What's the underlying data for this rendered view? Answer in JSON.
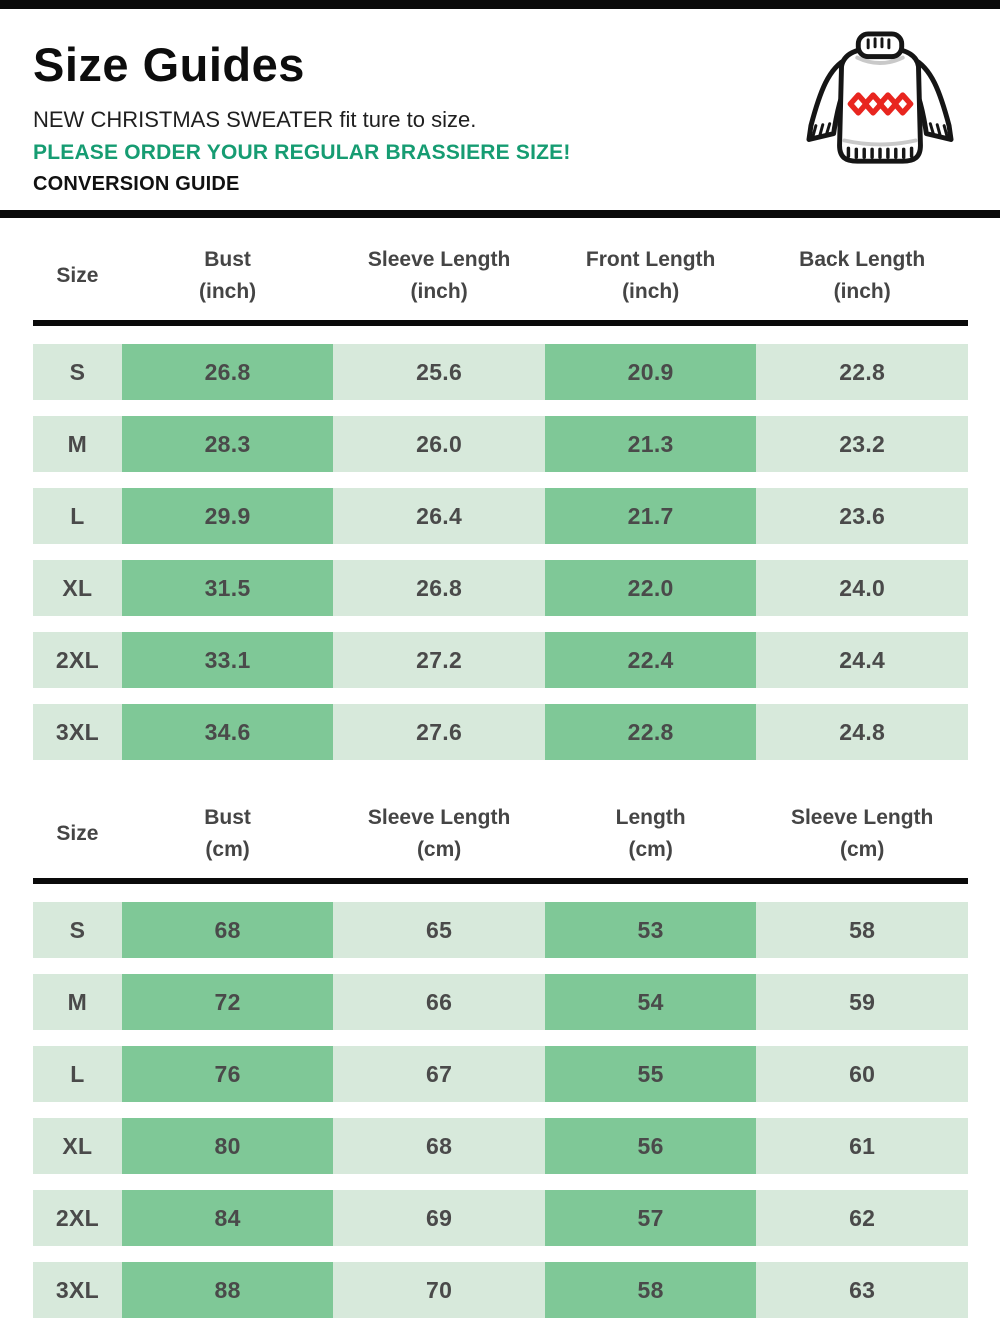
{
  "page": {
    "title": "Size Guides",
    "subtitle": "NEW CHRISTMAS SWEATER fit ture to size.",
    "order_note": "PLEASE ORDER YOUR REGULAR BRASSIERE SIZE!",
    "conversion_label": "CONVERSION GUIDE"
  },
  "icons": {
    "sweater": "christmas-sweater-icon",
    "sweater_outline_color": "#151515",
    "sweater_diamond_color": "#e8251f"
  },
  "colors": {
    "highlight_text": "#169c72",
    "cell_dark_green": "#7fc897",
    "cell_light_green": "#d7e9db",
    "table_text": "#4a4a4a",
    "divider_black": "#0a0a0a"
  },
  "inch_table": {
    "columns": [
      {
        "label": "Size",
        "unit": ""
      },
      {
        "label": "Bust",
        "unit": "(inch)"
      },
      {
        "label": "Sleeve Length",
        "unit": "(inch)"
      },
      {
        "label": "Front Length",
        "unit": "(inch)"
      },
      {
        "label": "Back Length",
        "unit": "(inch)"
      }
    ],
    "rows": [
      {
        "size": "S",
        "values": [
          "26.8",
          "25.6",
          "20.9",
          "22.8"
        ]
      },
      {
        "size": "M",
        "values": [
          "28.3",
          "26.0",
          "21.3",
          "23.2"
        ]
      },
      {
        "size": "L",
        "values": [
          "29.9",
          "26.4",
          "21.7",
          "23.6"
        ]
      },
      {
        "size": "XL",
        "values": [
          "31.5",
          "26.8",
          "22.0",
          "24.0"
        ]
      },
      {
        "size": "2XL",
        "values": [
          "33.1",
          "27.2",
          "22.4",
          "24.4"
        ]
      },
      {
        "size": "3XL",
        "values": [
          "34.6",
          "27.6",
          "22.8",
          "24.8"
        ]
      }
    ]
  },
  "cm_table": {
    "columns": [
      {
        "label": "Size",
        "unit": ""
      },
      {
        "label": "Bust",
        "unit": "(cm)"
      },
      {
        "label": "Sleeve Length",
        "unit": "(cm)"
      },
      {
        "label": "Length",
        "unit": "(cm)"
      },
      {
        "label": "Sleeve Length",
        "unit": "(cm)"
      }
    ],
    "rows": [
      {
        "size": "S",
        "values": [
          "68",
          "65",
          "53",
          "58"
        ]
      },
      {
        "size": "M",
        "values": [
          "72",
          "66",
          "54",
          "59"
        ]
      },
      {
        "size": "L",
        "values": [
          "76",
          "67",
          "55",
          "60"
        ]
      },
      {
        "size": "XL",
        "values": [
          "80",
          "68",
          "56",
          "61"
        ]
      },
      {
        "size": "2XL",
        "values": [
          "84",
          "69",
          "57",
          "62"
        ]
      },
      {
        "size": "3XL",
        "values": [
          "88",
          "70",
          "58",
          "63"
        ]
      }
    ]
  }
}
